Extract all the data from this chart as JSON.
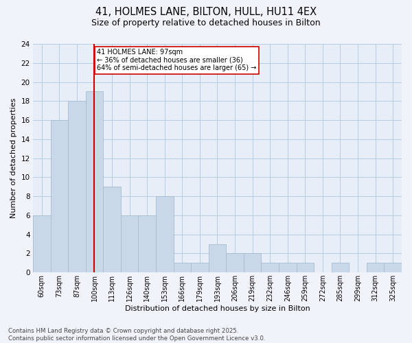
{
  "title1": "41, HOLMES LANE, BILTON, HULL, HU11 4EX",
  "title2": "Size of property relative to detached houses in Bilton",
  "xlabel": "Distribution of detached houses by size in Bilton",
  "ylabel": "Number of detached properties",
  "categories": [
    "60sqm",
    "73sqm",
    "87sqm",
    "100sqm",
    "113sqm",
    "126sqm",
    "140sqm",
    "153sqm",
    "166sqm",
    "179sqm",
    "193sqm",
    "206sqm",
    "219sqm",
    "232sqm",
    "246sqm",
    "259sqm",
    "272sqm",
    "285sqm",
    "299sqm",
    "312sqm",
    "325sqm"
  ],
  "values": [
    6,
    16,
    18,
    19,
    9,
    6,
    6,
    8,
    1,
    1,
    3,
    2,
    2,
    1,
    1,
    1,
    0,
    1,
    0,
    1,
    1
  ],
  "bar_color": "#c8d8e8",
  "bar_edge_color": "#a8bcd0",
  "vline_color": "#cc0000",
  "vline_x": 3.0,
  "annotation_text": "41 HOLMES LANE: 97sqm\n← 36% of detached houses are smaller (36)\n64% of semi-detached houses are larger (65) →",
  "ylim": [
    0,
    24
  ],
  "yticks": [
    0,
    2,
    4,
    6,
    8,
    10,
    12,
    14,
    16,
    18,
    20,
    22,
    24
  ],
  "footer_text": "Contains HM Land Registry data © Crown copyright and database right 2025.\nContains public sector information licensed under the Open Government Licence v3.0.",
  "grid_color": "#b8cce0",
  "background_color": "#e8eef8",
  "fig_background": "#f0f4fa",
  "bar_width": 1.0,
  "title1_fontsize": 10.5,
  "title2_fontsize": 9.0
}
